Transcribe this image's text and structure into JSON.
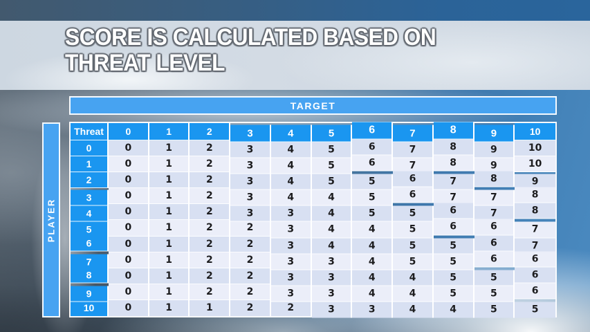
{
  "slide": {
    "title": "SCORE IS CALCULATED BASED ON\nTHREAT LEVEL"
  },
  "matrix": {
    "target_label": "TARGET",
    "player_label": "PLAYER",
    "corner_label": "Threat",
    "column_headers": [
      "0",
      "1",
      "2",
      "3",
      "4",
      "5",
      "6",
      "7",
      "8",
      "9",
      "10"
    ],
    "row_headers": [
      "0",
      "1",
      "2",
      "3",
      "4",
      "5",
      "6",
      "7",
      "8",
      "9",
      "10"
    ],
    "rows": [
      [
        0,
        1,
        2,
        3,
        4,
        5,
        6,
        7,
        8,
        9,
        10
      ],
      [
        0,
        1,
        2,
        3,
        4,
        5,
        6,
        7,
        8,
        9,
        10
      ],
      [
        0,
        1,
        2,
        3,
        4,
        5,
        5,
        6,
        7,
        8,
        9
      ],
      [
        0,
        1,
        2,
        3,
        4,
        4,
        5,
        6,
        7,
        7,
        8
      ],
      [
        0,
        1,
        2,
        3,
        3,
        4,
        5,
        5,
        6,
        7,
        8
      ],
      [
        0,
        1,
        2,
        2,
        3,
        4,
        4,
        5,
        6,
        6,
        7
      ],
      [
        0,
        1,
        2,
        2,
        3,
        4,
        4,
        5,
        5,
        6,
        7
      ],
      [
        0,
        1,
        2,
        2,
        3,
        3,
        4,
        5,
        5,
        6,
        6
      ],
      [
        0,
        1,
        2,
        2,
        3,
        3,
        4,
        4,
        5,
        5,
        6
      ],
      [
        0,
        1,
        2,
        2,
        3,
        3,
        4,
        4,
        5,
        5,
        6
      ],
      [
        0,
        1,
        1,
        2,
        2,
        3,
        3,
        4,
        4,
        5,
        5
      ]
    ]
  },
  "colors": {
    "header_blue": "#1a96f0",
    "bar_blue": "#47a3f1",
    "band_dark": "#d8e0f2",
    "band_light": "#ebeef9",
    "body_text": "#1c1c1e",
    "title_text": "#ffffff"
  },
  "chart_data": {
    "type": "table",
    "title": "Score is calculated based on threat level",
    "x_axis_label": "TARGET",
    "y_axis_label": "PLAYER",
    "corner_label": "Threat",
    "columns": [
      0,
      1,
      2,
      3,
      4,
      5,
      6,
      7,
      8,
      9,
      10
    ],
    "row_index": [
      0,
      1,
      2,
      3,
      4,
      5,
      6,
      7,
      8,
      9,
      10
    ],
    "values": [
      [
        0,
        1,
        2,
        3,
        4,
        5,
        6,
        7,
        8,
        9,
        10
      ],
      [
        0,
        1,
        2,
        3,
        4,
        5,
        6,
        7,
        8,
        9,
        10
      ],
      [
        0,
        1,
        2,
        3,
        4,
        5,
        5,
        6,
        7,
        8,
        9
      ],
      [
        0,
        1,
        2,
        3,
        4,
        4,
        5,
        6,
        7,
        7,
        8
      ],
      [
        0,
        1,
        2,
        3,
        3,
        4,
        5,
        5,
        6,
        7,
        8
      ],
      [
        0,
        1,
        2,
        2,
        3,
        4,
        4,
        5,
        6,
        6,
        7
      ],
      [
        0,
        1,
        2,
        2,
        3,
        4,
        4,
        5,
        5,
        6,
        7
      ],
      [
        0,
        1,
        2,
        2,
        3,
        3,
        4,
        5,
        5,
        6,
        6
      ],
      [
        0,
        1,
        2,
        2,
        3,
        3,
        4,
        4,
        5,
        5,
        6
      ],
      [
        0,
        1,
        2,
        2,
        3,
        3,
        4,
        4,
        5,
        5,
        6
      ],
      [
        0,
        1,
        1,
        2,
        2,
        3,
        3,
        4,
        4,
        5,
        5
      ]
    ]
  }
}
